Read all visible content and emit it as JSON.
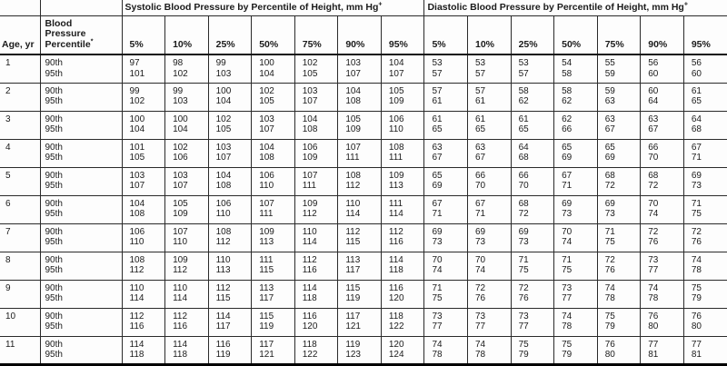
{
  "header": {
    "age_label": "Age, yr",
    "bp_percentile_label": "Blood\nPressure\nPercentile",
    "bp_percentile_sup": "*",
    "systolic_title": "Systolic Blood Pressure by Percentile of Height, mm Hg",
    "diastolic_title": "Diastolic Blood Pressure by Percentile of Height, mm Hg",
    "title_sup": "+",
    "height_percentiles": [
      "5%",
      "10%",
      "25%",
      "50%",
      "75%",
      "90%",
      "95%"
    ]
  },
  "colors": {
    "text": "#1b1b1b",
    "border": "#2a2a2a",
    "background": "#fdfdfd"
  },
  "rows": [
    {
      "age": "1",
      "bp_percentiles": [
        "90th",
        "95th"
      ],
      "systolic": [
        [
          97,
          98,
          99,
          100,
          102,
          103,
          104
        ],
        [
          101,
          102,
          103,
          104,
          105,
          107,
          107
        ]
      ],
      "diastolic": [
        [
          53,
          53,
          53,
          54,
          55,
          56,
          56
        ],
        [
          57,
          57,
          57,
          58,
          59,
          60,
          60
        ]
      ]
    },
    {
      "age": "2",
      "bp_percentiles": [
        "90th",
        "95th"
      ],
      "systolic": [
        [
          99,
          99,
          100,
          102,
          103,
          104,
          105
        ],
        [
          102,
          103,
          104,
          105,
          107,
          108,
          109
        ]
      ],
      "diastolic": [
        [
          57,
          57,
          58,
          58,
          59,
          60,
          61
        ],
        [
          61,
          61,
          62,
          62,
          63,
          64,
          65
        ]
      ]
    },
    {
      "age": "3",
      "bp_percentiles": [
        "90th",
        "95th"
      ],
      "systolic": [
        [
          100,
          100,
          102,
          103,
          104,
          105,
          106
        ],
        [
          104,
          104,
          105,
          107,
          108,
          109,
          110
        ]
      ],
      "diastolic": [
        [
          61,
          61,
          61,
          62,
          63,
          63,
          64
        ],
        [
          65,
          65,
          65,
          66,
          67,
          67,
          68
        ]
      ]
    },
    {
      "age": "4",
      "bp_percentiles": [
        "90th",
        "95th"
      ],
      "systolic": [
        [
          101,
          102,
          103,
          104,
          106,
          107,
          108
        ],
        [
          105,
          106,
          107,
          108,
          109,
          111,
          111
        ]
      ],
      "diastolic": [
        [
          63,
          63,
          64,
          65,
          65,
          66,
          67
        ],
        [
          67,
          67,
          68,
          69,
          69,
          70,
          71
        ]
      ]
    },
    {
      "age": "5",
      "bp_percentiles": [
        "90th",
        "95th"
      ],
      "systolic": [
        [
          103,
          103,
          104,
          106,
          107,
          108,
          109
        ],
        [
          107,
          107,
          108,
          110,
          111,
          112,
          113
        ]
      ],
      "diastolic": [
        [
          65,
          66,
          66,
          67,
          68,
          68,
          69
        ],
        [
          69,
          70,
          70,
          71,
          72,
          72,
          73
        ]
      ]
    },
    {
      "age": "6",
      "bp_percentiles": [
        "90th",
        "95th"
      ],
      "systolic": [
        [
          104,
          105,
          106,
          107,
          109,
          110,
          111
        ],
        [
          108,
          109,
          110,
          111,
          112,
          114,
          114
        ]
      ],
      "diastolic": [
        [
          67,
          67,
          68,
          69,
          69,
          70,
          71
        ],
        [
          71,
          71,
          72,
          73,
          73,
          74,
          75
        ]
      ]
    },
    {
      "age": "7",
      "bp_percentiles": [
        "90th",
        "95th"
      ],
      "systolic": [
        [
          106,
          107,
          108,
          109,
          110,
          112,
          112
        ],
        [
          110,
          110,
          112,
          113,
          114,
          115,
          116
        ]
      ],
      "diastolic": [
        [
          69,
          69,
          69,
          70,
          71,
          72,
          72
        ],
        [
          73,
          73,
          73,
          74,
          75,
          76,
          76
        ]
      ]
    },
    {
      "age": "8",
      "bp_percentiles": [
        "90th",
        "95th"
      ],
      "systolic": [
        [
          108,
          109,
          110,
          111,
          112,
          113,
          114
        ],
        [
          112,
          112,
          113,
          115,
          116,
          117,
          118
        ]
      ],
      "diastolic": [
        [
          70,
          70,
          71,
          71,
          72,
          73,
          74
        ],
        [
          74,
          74,
          75,
          75,
          76,
          77,
          78
        ]
      ]
    },
    {
      "age": "9",
      "bp_percentiles": [
        "90th",
        "95th"
      ],
      "systolic": [
        [
          110,
          110,
          112,
          113,
          114,
          115,
          116
        ],
        [
          114,
          114,
          115,
          117,
          118,
          119,
          120
        ]
      ],
      "diastolic": [
        [
          71,
          72,
          72,
          73,
          74,
          74,
          75
        ],
        [
          75,
          76,
          76,
          77,
          78,
          78,
          79
        ]
      ]
    },
    {
      "age": "10",
      "bp_percentiles": [
        "90th",
        "95th"
      ],
      "systolic": [
        [
          112,
          112,
          114,
          115,
          116,
          117,
          118
        ],
        [
          116,
          116,
          117,
          119,
          120,
          121,
          122
        ]
      ],
      "diastolic": [
        [
          73,
          73,
          73,
          74,
          75,
          76,
          76
        ],
        [
          77,
          77,
          77,
          78,
          79,
          80,
          80
        ]
      ]
    },
    {
      "age": "11",
      "bp_percentiles": [
        "90th",
        "95th"
      ],
      "systolic": [
        [
          114,
          114,
          116,
          117,
          118,
          119,
          120
        ],
        [
          118,
          118,
          119,
          121,
          122,
          123,
          124
        ]
      ],
      "diastolic": [
        [
          74,
          74,
          75,
          75,
          76,
          77,
          77
        ],
        [
          78,
          78,
          79,
          79,
          80,
          81,
          81
        ]
      ]
    }
  ]
}
